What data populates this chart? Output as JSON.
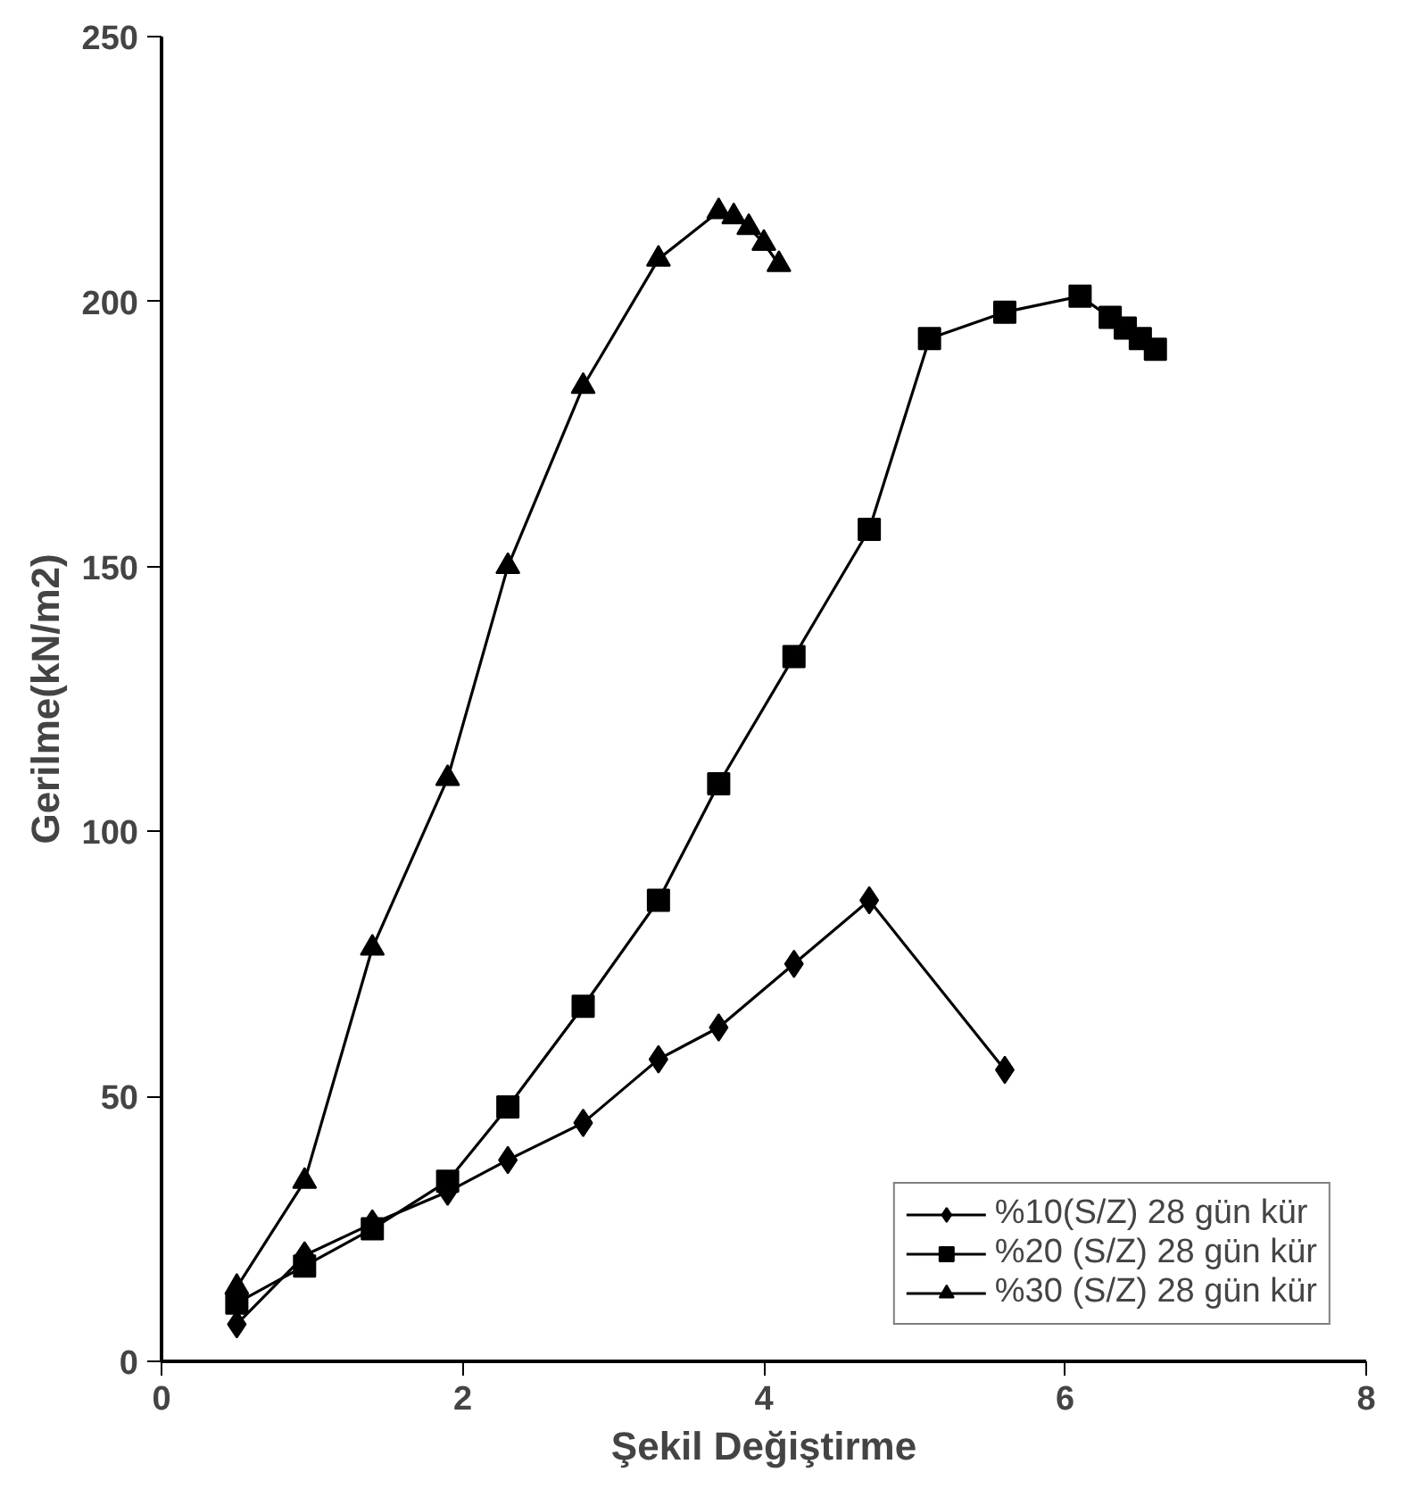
{
  "chart_data": {
    "type": "line",
    "xlabel": "Şekil Değiştirme",
    "ylabel": "Gerilme(kN/m2)",
    "xlim": [
      0,
      8
    ],
    "xticks": [
      0,
      2,
      4,
      6,
      8
    ],
    "ylim": [
      0,
      250
    ],
    "yticks": [
      0,
      50,
      100,
      150,
      200,
      250
    ],
    "grid": false,
    "legend": "bottom right",
    "series": [
      {
        "name": "%10(S/Z) 28 gün kür",
        "color": "#000000",
        "marker": "diamond",
        "x": [
          0.5,
          0.95,
          1.4,
          1.9,
          2.3,
          2.8,
          3.3,
          3.7,
          4.2,
          4.7,
          5.6
        ],
        "values": [
          7,
          20,
          26,
          32,
          38,
          45,
          57,
          63,
          75,
          87,
          55
        ]
      },
      {
        "name": "%20 (S/Z) 28 gün kür",
        "color": "#000000",
        "marker": "square",
        "x": [
          0.5,
          0.95,
          1.4,
          1.9,
          2.3,
          2.8,
          3.3,
          3.7,
          4.2,
          4.7,
          5.1,
          5.6,
          6.1,
          6.3,
          6.4,
          6.5,
          6.6
        ],
        "values": [
          11,
          18,
          25,
          34,
          48,
          67,
          87,
          109,
          133,
          157,
          193,
          198,
          201,
          197,
          195,
          193,
          191
        ]
      },
      {
        "name": "%30 (S/Z) 28 gün kür",
        "color": "#000000",
        "marker": "triangle",
        "x": [
          0.5,
          0.95,
          1.4,
          1.9,
          2.3,
          2.8,
          3.3,
          3.7,
          3.8,
          3.9,
          4.0,
          4.1
        ],
        "values": [
          14,
          34,
          78,
          110,
          150,
          184,
          208,
          217,
          216,
          214,
          211,
          207
        ]
      }
    ]
  }
}
